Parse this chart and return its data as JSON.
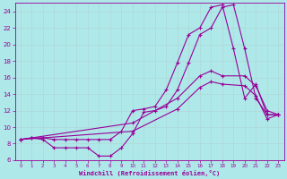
{
  "background_color": "#aee8e8",
  "grid_color": "#c8e8e8",
  "line_color": "#990099",
  "xlabel": "Windchill (Refroidissement éolien,°C)",
  "xlim": [
    -0.5,
    23.5
  ],
  "ylim": [
    6,
    25
  ],
  "yticks": [
    6,
    8,
    10,
    12,
    14,
    16,
    18,
    20,
    22,
    24
  ],
  "xticks": [
    0,
    1,
    2,
    3,
    4,
    5,
    6,
    7,
    8,
    9,
    10,
    11,
    12,
    13,
    14,
    15,
    16,
    17,
    18,
    19,
    20,
    21,
    22,
    23
  ],
  "curve_top_x": [
    0,
    1,
    2,
    3,
    4,
    5,
    6,
    7,
    8,
    9,
    10,
    11,
    12,
    13,
    14,
    15,
    16,
    17,
    18,
    19,
    20,
    21,
    22,
    23
  ],
  "curve_top_y": [
    8.5,
    8.7,
    8.7,
    8.5,
    8.5,
    8.5,
    8.5,
    8.5,
    8.5,
    9.5,
    12.0,
    12.2,
    12.5,
    14.5,
    17.8,
    21.2,
    22.0,
    24.5,
    24.8,
    19.5,
    13.5,
    15.2,
    11.5,
    11.5
  ],
  "curve_dip_x": [
    0,
    1,
    2,
    3,
    4,
    5,
    6,
    7,
    8,
    9,
    10,
    11,
    12,
    13,
    14,
    15,
    16,
    17,
    18,
    19,
    20,
    21,
    22,
    23
  ],
  "curve_dip_y": [
    8.5,
    8.7,
    8.5,
    7.5,
    7.5,
    7.5,
    7.5,
    6.5,
    6.5,
    7.5,
    9.2,
    11.8,
    12.0,
    12.5,
    14.5,
    17.8,
    21.2,
    22.0,
    24.5,
    24.8,
    19.5,
    13.5,
    11.5,
    11.5
  ],
  "curve_mid_x": [
    0,
    10,
    14,
    16,
    17,
    18,
    20,
    21,
    22,
    23
  ],
  "curve_mid_y": [
    8.5,
    10.5,
    13.5,
    16.2,
    16.8,
    16.2,
    16.2,
    15.0,
    12.0,
    11.5
  ],
  "curve_low_x": [
    0,
    10,
    14,
    16,
    17,
    18,
    20,
    21,
    22,
    23
  ],
  "curve_low_y": [
    8.5,
    9.5,
    12.2,
    14.8,
    15.5,
    15.2,
    15.0,
    13.8,
    11.0,
    11.5
  ]
}
